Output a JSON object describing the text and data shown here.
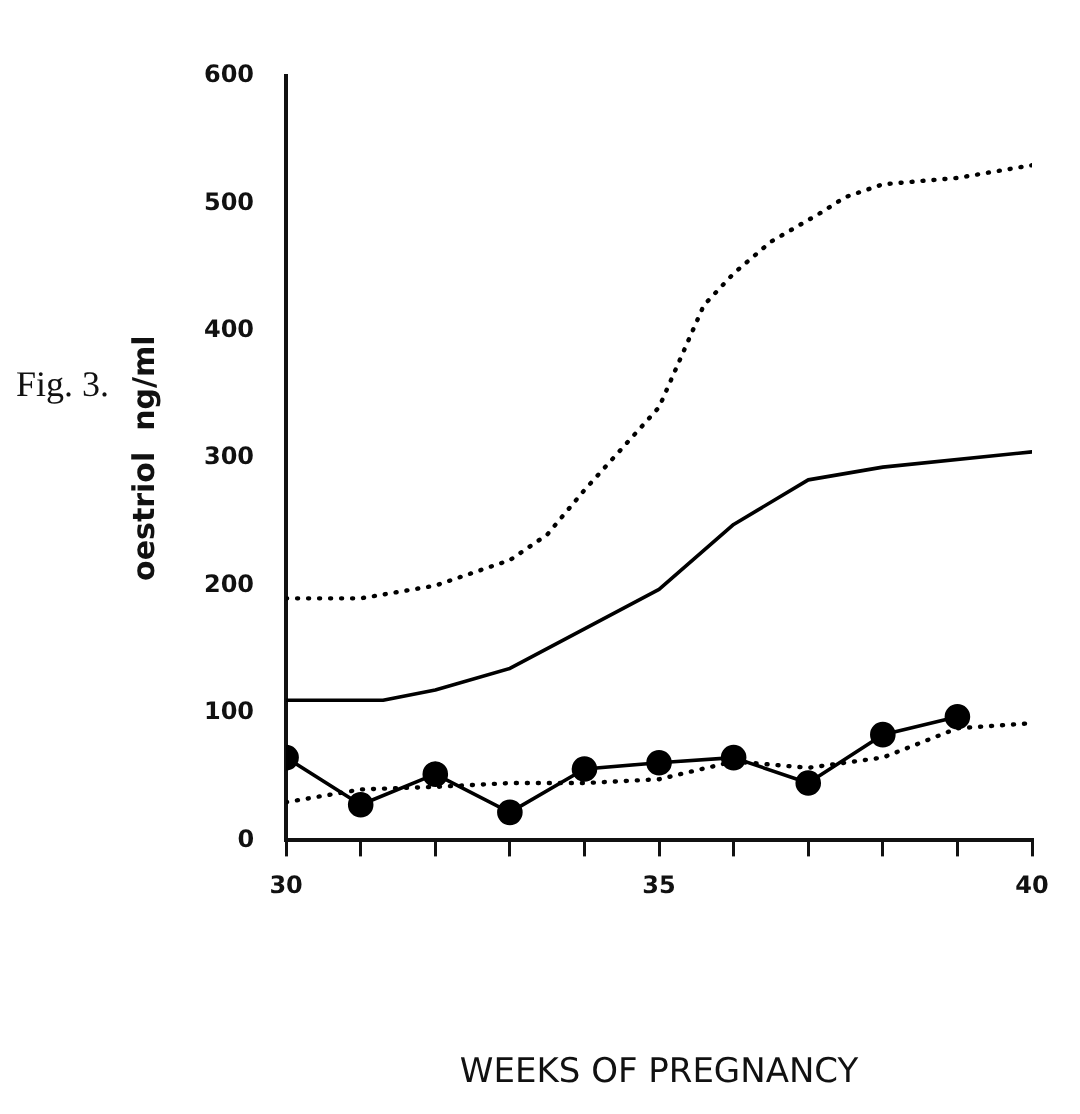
{
  "chart_data": {
    "type": "line",
    "xlabel": "WEEKS OF PREGNANCY",
    "ylabel": "oestriol  ng/ml",
    "annotations": [
      "Fig. 3."
    ],
    "xlim": [
      30,
      40
    ],
    "xticks": [
      30,
      {
        "value": 31,
        "label": null
      },
      {
        "value": 32,
        "label": null
      },
      {
        "value": 33,
        "label": null
      },
      {
        "value": 34,
        "label": null
      },
      35,
      {
        "value": 36,
        "label": null
      },
      {
        "value": 37,
        "label": null
      },
      {
        "value": 38,
        "label": null
      },
      {
        "value": 39,
        "label": null
      },
      40
    ],
    "ylim": [
      0,
      600
    ],
    "yticks": [
      0,
      100,
      200,
      300,
      400,
      500,
      600
    ],
    "grid": false,
    "legend": false,
    "series": [
      {
        "color": "#000000",
        "line_style": "dotted",
        "marker": "none",
        "x": [
          30,
          31,
          32,
          33,
          33.5,
          34,
          35,
          35.6,
          36,
          36.5,
          37.15,
          37.5,
          38,
          39,
          40
        ],
        "values": [
          190,
          190,
          200,
          220,
          240,
          275,
          340,
          420,
          445,
          470,
          492,
          505,
          515,
          520,
          530
        ]
      },
      {
        "color": "#000000",
        "line_style": "solid",
        "marker": "none",
        "x": [
          30,
          31.3,
          32,
          33,
          34,
          35,
          36,
          37,
          38,
          40
        ],
        "values": [
          110,
          110,
          118,
          135,
          166,
          197,
          248,
          283,
          293,
          305
        ]
      },
      {
        "color": "#000000",
        "line_style": "dotted",
        "marker": "none",
        "x": [
          30,
          31,
          32,
          33,
          34,
          35,
          36,
          37,
          38,
          39,
          40
        ],
        "values": [
          30,
          40,
          42,
          45,
          45,
          48,
          62,
          57,
          65,
          88,
          92
        ]
      },
      {
        "color": "#000000",
        "line_style": "solid",
        "marker": "circle",
        "x": [
          30,
          31,
          32,
          33,
          34,
          35,
          36,
          37,
          38,
          39
        ],
        "values": [
          65,
          28,
          52,
          22,
          56,
          61,
          65,
          45,
          83,
          97
        ]
      }
    ]
  }
}
